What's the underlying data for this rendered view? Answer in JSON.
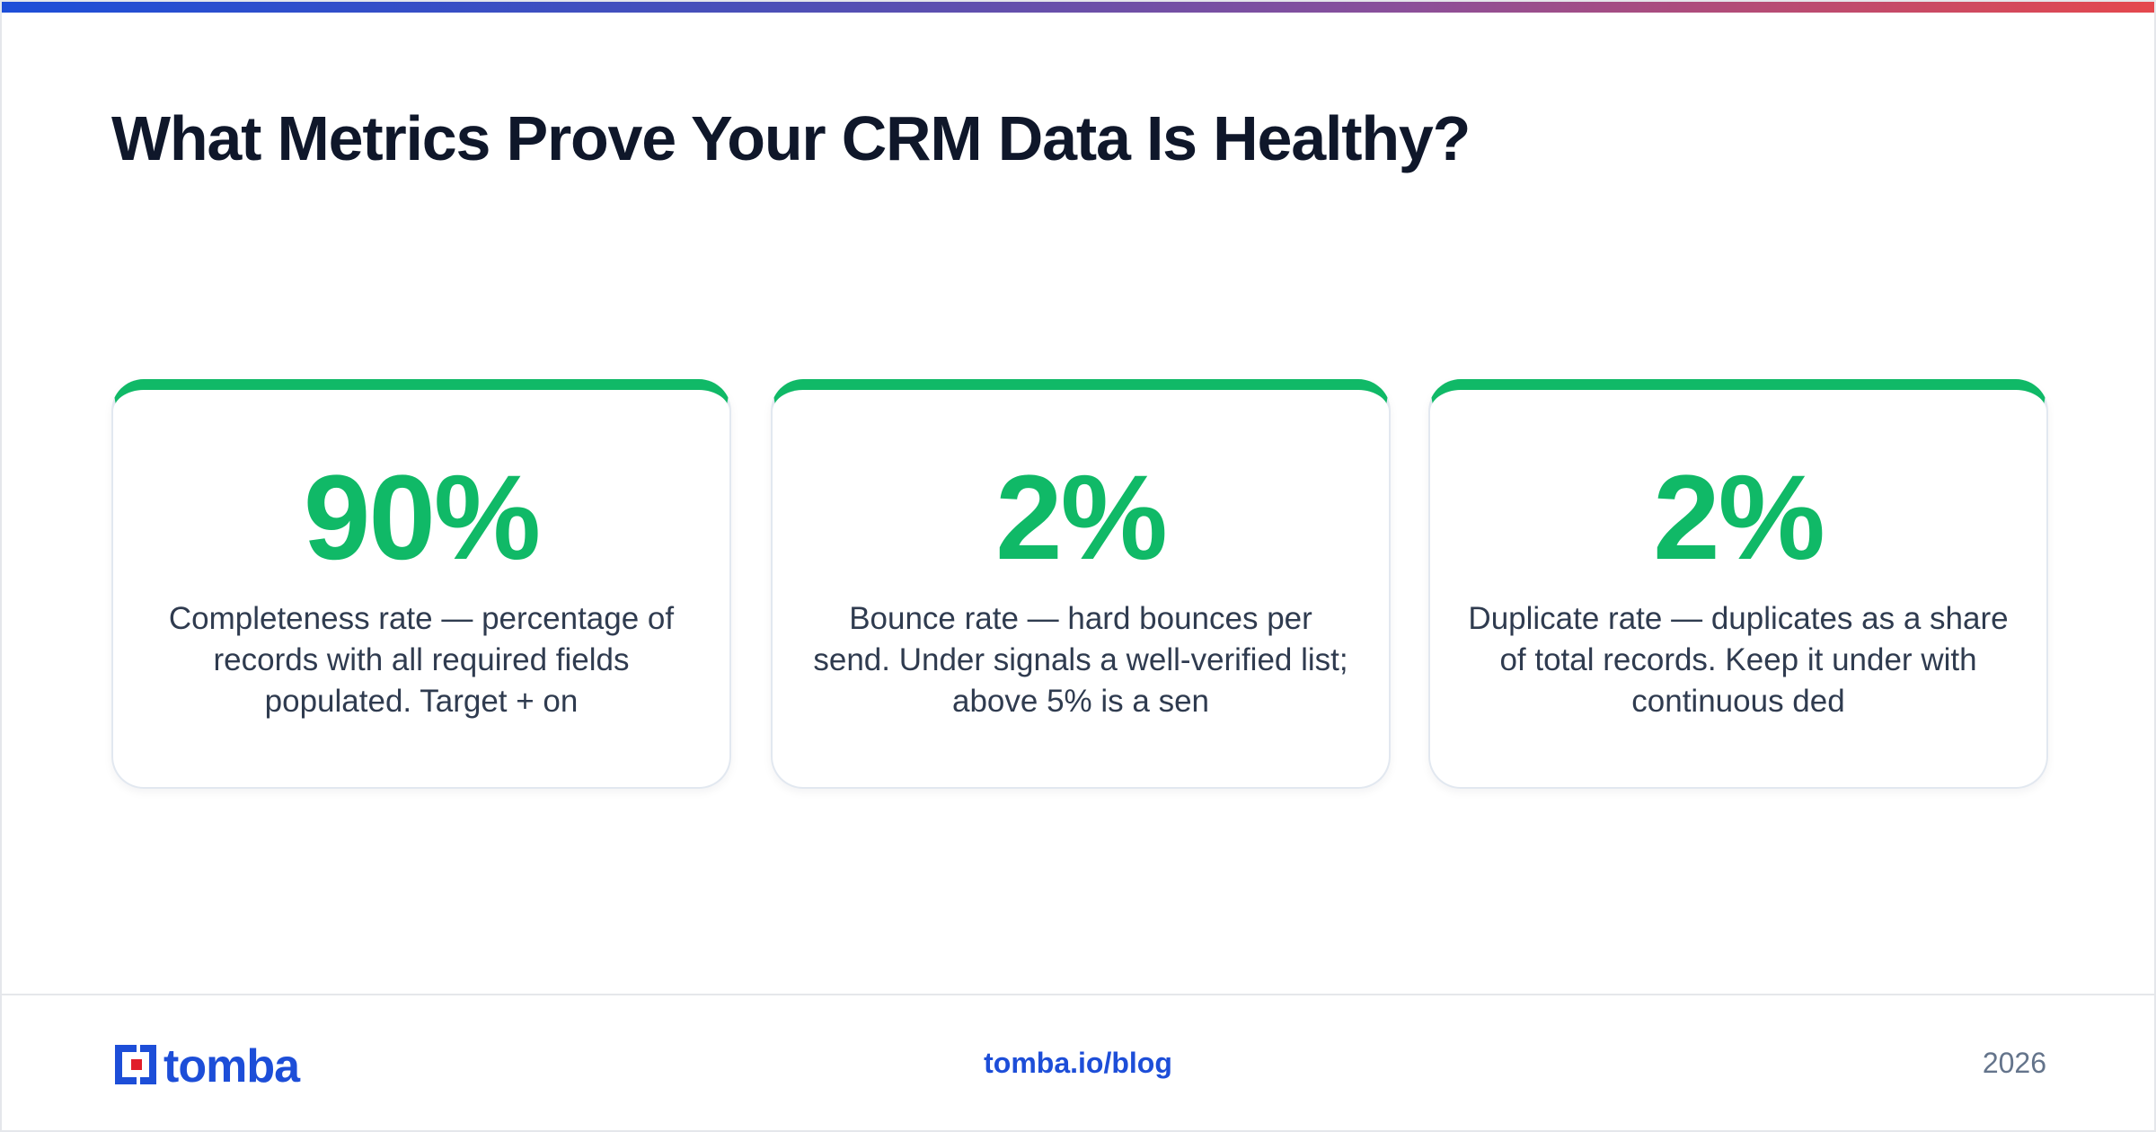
{
  "header": {
    "title": "What Metrics Prove Your CRM Data Is Healthy?"
  },
  "metrics": [
    {
      "value": "90%",
      "description": "Completeness rate — percentage of records with all required fields populated. Target + on"
    },
    {
      "value": "2%",
      "description": "Bounce rate — hard bounces per send. Under signals a well-verified list; above 5% is a sen"
    },
    {
      "value": "2%",
      "description": "Duplicate rate — duplicates as a share of total records. Keep it under with continuous ded"
    }
  ],
  "footer": {
    "brand": "tomba",
    "link": "tomba.io/blog",
    "year": "2026"
  },
  "colors": {
    "accent": "#10b967",
    "brand": "#1d4ed8",
    "brand_red": "#e11d2a",
    "title": "#0f172a",
    "body": "#2f3b4f",
    "muted": "#64748b"
  }
}
